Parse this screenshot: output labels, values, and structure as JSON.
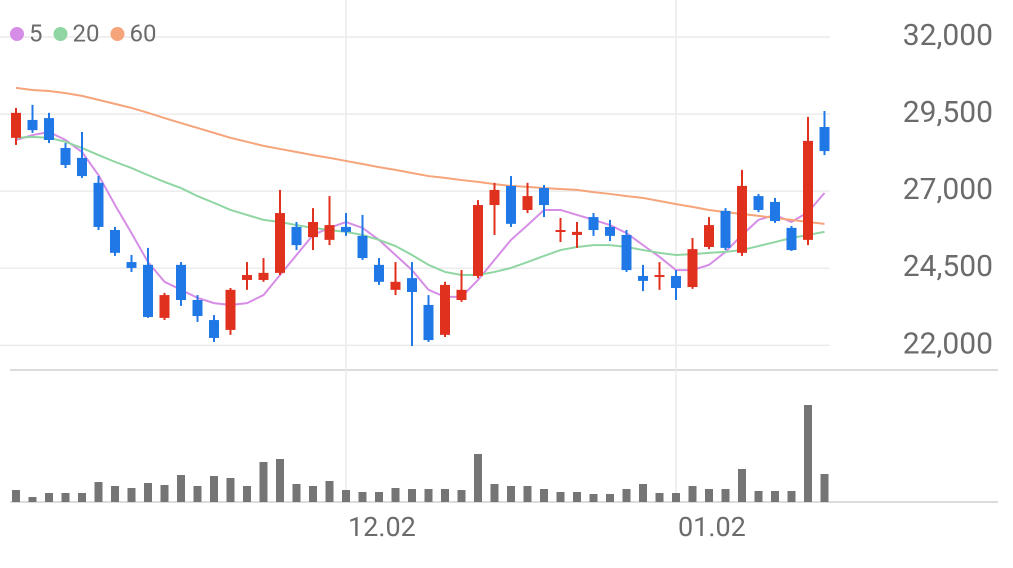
{
  "chart_data": {
    "type": "candlestick",
    "categories": [
      null,
      null,
      null,
      null,
      null,
      null,
      null,
      null,
      null,
      null,
      null,
      null,
      null,
      null,
      null,
      null,
      null,
      null,
      null,
      null,
      "12.02",
      null,
      null,
      null,
      null,
      null,
      null,
      null,
      null,
      null,
      null,
      null,
      null,
      null,
      null,
      null,
      null,
      null,
      null,
      null,
      "01.02",
      null,
      null,
      null,
      null,
      null,
      null,
      null,
      null,
      null
    ],
    "open": [
      28730,
      29310,
      29370,
      28400,
      28080,
      27270,
      25740,
      24700,
      24610,
      22890,
      24610,
      23470,
      22820,
      22500,
      24120,
      24120,
      24350,
      25840,
      25510,
      25420,
      25840,
      25550,
      24610,
      23800,
      24180,
      23310,
      22340,
      23470,
      24250,
      26550,
      27170,
      26390,
      27100,
      25680,
      25580,
      26160,
      25840,
      25580,
      24250,
      24220,
      24250,
      23890,
      25190,
      26360,
      25000,
      26840,
      26650,
      25810,
      25420,
      29080
    ],
    "high": [
      29700,
      29800,
      29540,
      28560,
      28920,
      27490,
      25840,
      24930,
      25160,
      23700,
      24700,
      23630,
      22980,
      23860,
      24700,
      24830,
      27040,
      26000,
      26450,
      26840,
      26290,
      26230,
      24830,
      24700,
      24700,
      23630,
      24060,
      24440,
      26710,
      27270,
      27490,
      27270,
      27200,
      26130,
      26000,
      26290,
      26070,
      25740,
      24610,
      24700,
      24440,
      25480,
      26160,
      26450,
      27690,
      26910,
      26780,
      25870,
      29410,
      29600
    ],
    "low": [
      28500,
      28890,
      28560,
      27750,
      27430,
      25740,
      24900,
      24380,
      22890,
      22820,
      23280,
      22760,
      22110,
      22340,
      23800,
      24060,
      24280,
      25090,
      25090,
      25250,
      25550,
      24770,
      23960,
      23630,
      21980,
      22110,
      22270,
      23410,
      24180,
      25580,
      25840,
      26290,
      26160,
      25350,
      25160,
      25550,
      25380,
      24380,
      23760,
      23800,
      23470,
      23830,
      25120,
      25090,
      24900,
      26320,
      25970,
      25060,
      25250,
      28170
    ],
    "close": [
      29540,
      28980,
      28660,
      27850,
      27490,
      25840,
      25000,
      24510,
      22920,
      23630,
      23470,
      22950,
      22240,
      23800,
      24280,
      24350,
      26290,
      25250,
      26000,
      25900,
      25680,
      24830,
      24060,
      24060,
      23730,
      22170,
      23960,
      23800,
      26550,
      27040,
      25940,
      26840,
      26550,
      25740,
      25680,
      25740,
      25550,
      24440,
      24090,
      24280,
      23860,
      25120,
      25900,
      25160,
      27170,
      26390,
      26030,
      25090,
      28630,
      28300
    ],
    "up_color": "#e0301e",
    "down_color": "#1f78e6",
    "series": [
      {
        "name": "5",
        "color": "#d68de6",
        "values": [
          28660,
          28820,
          28920,
          28660,
          28270,
          27520,
          26550,
          25640,
          24700,
          24060,
          23800,
          23540,
          23370,
          23310,
          23370,
          23630,
          24280,
          24930,
          25580,
          25810,
          26000,
          25810,
          25420,
          24930,
          24440,
          23800,
          23570,
          23570,
          24120,
          24770,
          25420,
          25900,
          26390,
          26390,
          26230,
          26070,
          25900,
          25640,
          25250,
          24870,
          24440,
          24440,
          24610,
          25030,
          25580,
          26070,
          26230,
          26000,
          26320,
          26940
        ]
      },
      {
        "name": "20",
        "color": "#8fd6a2",
        "values": [
          28730,
          28760,
          28730,
          28600,
          28400,
          28170,
          27950,
          27750,
          27520,
          27300,
          27100,
          26840,
          26620,
          26390,
          26230,
          26070,
          26000,
          25900,
          25810,
          25740,
          25680,
          25580,
          25420,
          25220,
          24930,
          24610,
          24380,
          24280,
          24280,
          24380,
          24510,
          24700,
          24900,
          25090,
          25190,
          25250,
          25250,
          25190,
          25090,
          25000,
          24930,
          24960,
          25000,
          25030,
          25090,
          25220,
          25350,
          25480,
          25580,
          25680
        ]
      },
      {
        "name": "60",
        "color": "#f6a47a",
        "values": [
          30350,
          30280,
          30250,
          30180,
          30090,
          29960,
          29830,
          29700,
          29540,
          29370,
          29210,
          29050,
          28890,
          28730,
          28600,
          28470,
          28370,
          28270,
          28170,
          28080,
          27980,
          27880,
          27780,
          27690,
          27590,
          27490,
          27430,
          27360,
          27300,
          27230,
          27170,
          27140,
          27100,
          27070,
          27040,
          26970,
          26910,
          26840,
          26780,
          26680,
          26580,
          26490,
          26390,
          26320,
          26260,
          26200,
          26130,
          26070,
          26000,
          25940
        ]
      }
    ],
    "volume": {
      "color": "#757575",
      "values": [
        12,
        5,
        9,
        9,
        9,
        20,
        16,
        14,
        19,
        17,
        27,
        16,
        26,
        24,
        16,
        40,
        43,
        18,
        16,
        21,
        12,
        10,
        10,
        14,
        13,
        13,
        13,
        12,
        48,
        18,
        16,
        16,
        13,
        10,
        10,
        8,
        8,
        13,
        18,
        9,
        9,
        16,
        13,
        13,
        33,
        11,
        11,
        11,
        97,
        28
      ]
    },
    "ylim": [
      21200,
      33200
    ],
    "yticks": [
      {
        "value": 22000,
        "label": "22,000"
      },
      {
        "value": 24500,
        "label": "24,500"
      },
      {
        "value": 27000,
        "label": "27,000"
      },
      {
        "value": 29500,
        "label": "29,500"
      },
      {
        "value": 32000,
        "label": "32,000"
      }
    ],
    "grid": true
  }
}
